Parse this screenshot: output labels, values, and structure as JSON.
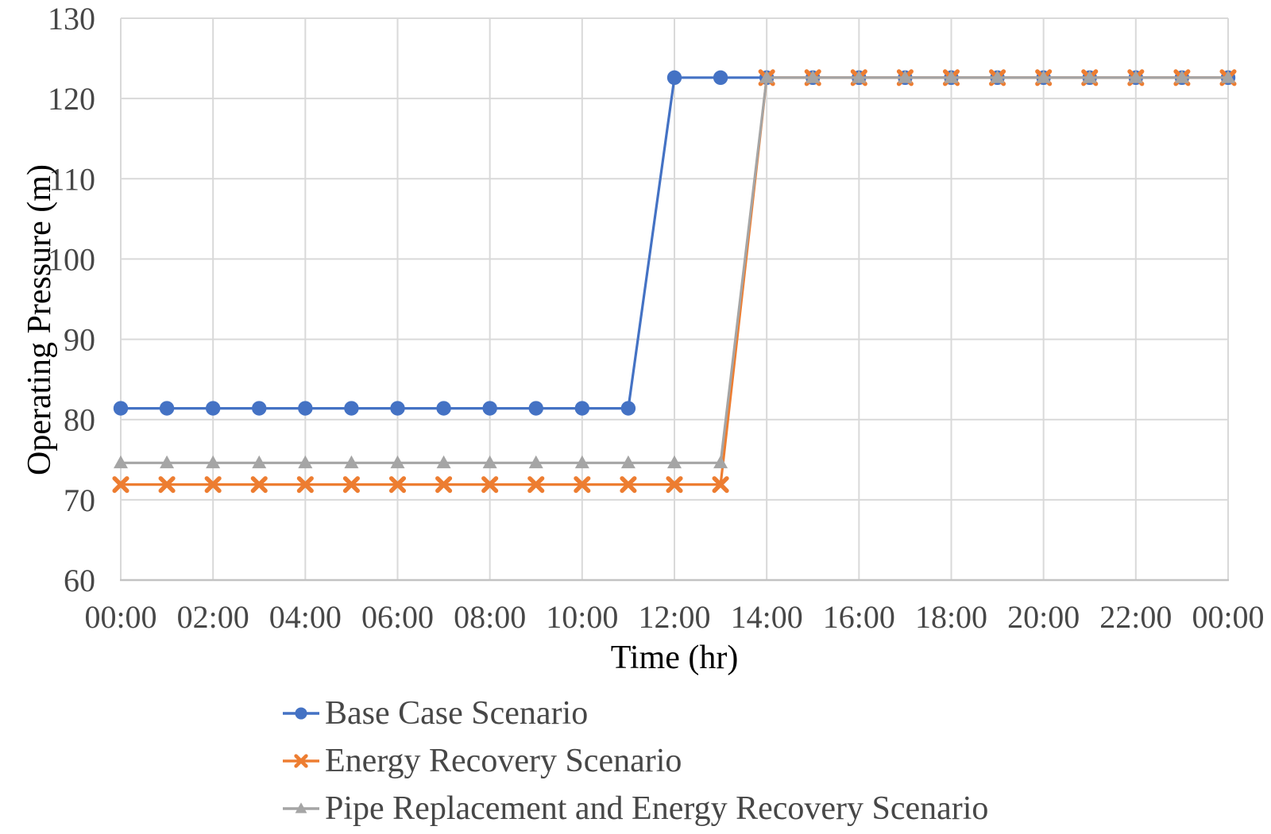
{
  "figure": {
    "background": "#ffffff"
  },
  "chart_data": {
    "type": "line",
    "title": "",
    "xlabel": "Time (hr)",
    "ylabel": "Operating Pressure (m)",
    "x_hours": [
      0,
      1,
      2,
      3,
      4,
      5,
      6,
      7,
      8,
      9,
      10,
      11,
      12,
      13,
      14,
      15,
      16,
      17,
      18,
      19,
      20,
      21,
      22,
      23,
      24
    ],
    "x_tick_hours": [
      0,
      2,
      4,
      6,
      8,
      10,
      12,
      14,
      16,
      18,
      20,
      22,
      24
    ],
    "x_tick_labels": [
      "00:00",
      "02:00",
      "04:00",
      "06:00",
      "08:00",
      "10:00",
      "12:00",
      "14:00",
      "16:00",
      "18:00",
      "20:00",
      "22:00",
      "00:00"
    ],
    "ylim": [
      60,
      130
    ],
    "y_ticks": [
      60,
      70,
      80,
      90,
      100,
      110,
      120,
      130
    ],
    "grid": true,
    "legend_position": "bottom-left",
    "colors": {
      "grid": "#d9d9d9",
      "axis": "#c3c3c3",
      "text": "#474747"
    },
    "series": [
      {
        "name": "Base Case Scenario",
        "color": "#4472c4",
        "marker": "circle",
        "values": [
          81.4,
          81.4,
          81.4,
          81.4,
          81.4,
          81.4,
          81.4,
          81.4,
          81.4,
          81.4,
          81.4,
          81.4,
          122.6,
          122.6,
          122.6,
          122.6,
          122.6,
          122.6,
          122.6,
          122.6,
          122.6,
          122.6,
          122.6,
          122.6,
          122.6
        ]
      },
      {
        "name": "Energy Recovery Scenario",
        "color": "#ed7d31",
        "marker": "x",
        "values": [
          71.9,
          71.9,
          71.9,
          71.9,
          71.9,
          71.9,
          71.9,
          71.9,
          71.9,
          71.9,
          71.9,
          71.9,
          71.9,
          71.9,
          122.6,
          122.6,
          122.6,
          122.6,
          122.6,
          122.6,
          122.6,
          122.6,
          122.6,
          122.6,
          122.6
        ]
      },
      {
        "name": "Pipe Replacement and Energy Recovery Scenario",
        "color": "#a5a5a5",
        "marker": "triangle",
        "values": [
          74.6,
          74.6,
          74.6,
          74.6,
          74.6,
          74.6,
          74.6,
          74.6,
          74.6,
          74.6,
          74.6,
          74.6,
          74.6,
          74.6,
          122.6,
          122.6,
          122.6,
          122.6,
          122.6,
          122.6,
          122.6,
          122.6,
          122.6,
          122.6,
          122.6
        ]
      }
    ]
  }
}
